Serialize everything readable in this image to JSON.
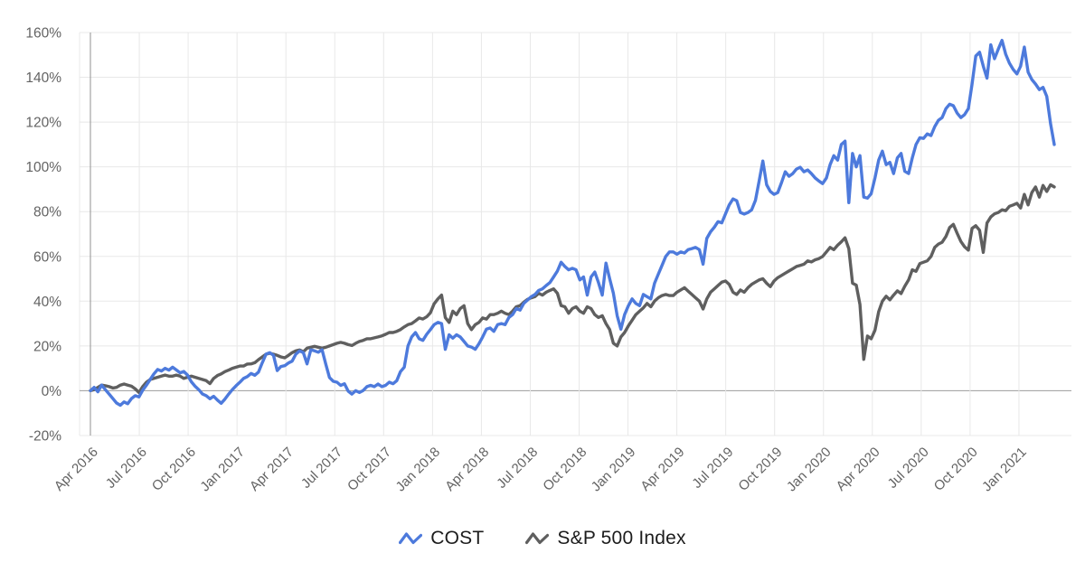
{
  "chart_data": {
    "type": "line",
    "title": "",
    "grid": true,
    "legend_position": "bottom",
    "y_axis": {
      "tick_labels": [
        "160%",
        "140%",
        "120%",
        "100%",
        "80%",
        "60%",
        "40%",
        "20%",
        "0%",
        "-20%"
      ],
      "tick_values": [
        160,
        140,
        120,
        100,
        80,
        60,
        40,
        20,
        0,
        -20
      ],
      "ylim": [
        -20,
        160
      ],
      "unit": "%"
    },
    "x_axis": {
      "tick_labels": [
        "Apr 2016",
        "Jul 2016",
        "Oct 2016",
        "Jan 2017",
        "Apr 2017",
        "Jul 2017",
        "Oct 2017",
        "Jan 2018",
        "Apr 2018",
        "Jul 2018",
        "Oct 2018",
        "Jan 2019",
        "Apr 2019",
        "Jul 2019",
        "Oct 2019",
        "Jan 2020",
        "Apr 2020",
        "Jul 2020",
        "Oct 2020",
        "Jan 2021"
      ],
      "interval": "weekly"
    },
    "series": [
      {
        "name": "COST",
        "color": "#4d7adc",
        "icon": "line-zigzag-icon",
        "values": [
          0,
          1.5,
          -0.5,
          2.5,
          0.5,
          -1.5,
          -3.5,
          -5.5,
          -6.5,
          -5,
          -5.8,
          -3.5,
          -2.2,
          -2.8,
          0.2,
          2.5,
          5,
          7.5,
          9.5,
          8.8,
          10,
          9.2,
          10.5,
          9.3,
          8,
          8.6,
          7,
          4,
          2,
          0.5,
          -1.5,
          -2.2,
          -3.6,
          -2.5,
          -4.2,
          -5.6,
          -3.8,
          -1.5,
          0.5,
          2.2,
          3.8,
          5.5,
          6.3,
          7.7,
          6.9,
          8.3,
          12.5,
          16.3,
          17,
          15.8,
          9,
          10.8,
          11.2,
          12.4,
          13.2,
          16.3,
          17.8,
          17,
          12,
          18.3,
          17.8,
          17.2,
          18.3,
          11.9,
          5.9,
          4.2,
          3.8,
          2.4,
          3.1,
          -0.2,
          -1.5,
          0,
          -0.8,
          0.1,
          1.8,
          2.4,
          1.8,
          3,
          1.8,
          2.4,
          3.8,
          3.1,
          4.5,
          8.5,
          10.5,
          20,
          24,
          26,
          23.2,
          22.5,
          25.2,
          27.3,
          29.5,
          30.5,
          30,
          18.5,
          25,
          23.5,
          25,
          24,
          22,
          20,
          19.5,
          18.5,
          21,
          24,
          27.5,
          28,
          26.5,
          29.5,
          30,
          29.5,
          32.7,
          34,
          36.7,
          36,
          39,
          40.5,
          42,
          43,
          44.8,
          45.5,
          47,
          48.3,
          50.8,
          53.5,
          57.4,
          55.5,
          54,
          54.7,
          54,
          49.5,
          50.8,
          42.7,
          50.8,
          53,
          48.3,
          42.7,
          57,
          50,
          43.5,
          33.5,
          27.5,
          34,
          38,
          41,
          39,
          38,
          43,
          42,
          41,
          48,
          52,
          56,
          60,
          62,
          62,
          61,
          62,
          61.5,
          63,
          63.5,
          64,
          63,
          56.5,
          68,
          71,
          73,
          75.5,
          75,
          79,
          83,
          85.7,
          84.9,
          79.6,
          78.9,
          79.6,
          80.8,
          85,
          93.7,
          102.6,
          92,
          89,
          87.7,
          88.5,
          93,
          97.8,
          95.8,
          97,
          99,
          99.8,
          97.8,
          98.6,
          97,
          95,
          93.7,
          92.5,
          95,
          101,
          105,
          103,
          110,
          111.5,
          84,
          106,
          100,
          105,
          86.5,
          86,
          88,
          95,
          103,
          107,
          101,
          102,
          97,
          104,
          106,
          98,
          97,
          104,
          110,
          113,
          112.7,
          114.7,
          114,
          118,
          120.8,
          122,
          126,
          128,
          127.3,
          124,
          122,
          123.3,
          126,
          137,
          149.5,
          151.2,
          145,
          139.6,
          154.5,
          148.3,
          152.5,
          156.5,
          150.3,
          146.3,
          143.5,
          141.5,
          145,
          153.5,
          142.3,
          139,
          137,
          134.5,
          135.5,
          131.5,
          119.3,
          110
        ]
      },
      {
        "name": "S&P 500 Index",
        "color": "#5f5f5f",
        "icon": "line-zigzag-icon",
        "values": [
          0,
          0.5,
          1.5,
          2.5,
          2.2,
          1.8,
          1.2,
          1.5,
          2.5,
          3,
          2.5,
          2,
          0.8,
          -0.8,
          1.8,
          3.8,
          5,
          5.5,
          6,
          6.5,
          7,
          6.5,
          6.5,
          7,
          6.5,
          5.5,
          6,
          6.5,
          6,
          5.5,
          5,
          4.5,
          3.2,
          5.5,
          6.8,
          7.5,
          8.5,
          9.2,
          10,
          10.5,
          11,
          11,
          11.9,
          12,
          12.5,
          13.9,
          15.1,
          16.3,
          16.7,
          16.3,
          15.8,
          15.1,
          14.7,
          15.8,
          17,
          17.8,
          18.2,
          17.4,
          19,
          19.4,
          19.8,
          19.4,
          19,
          19.4,
          20,
          20.6,
          21.2,
          21.6,
          21.2,
          20.6,
          20.2,
          21.2,
          22,
          22.5,
          23.2,
          23.2,
          23.6,
          24,
          24.5,
          25.2,
          26,
          26,
          26.5,
          27.3,
          28.5,
          29.5,
          30,
          31.2,
          32.5,
          32,
          33,
          34.8,
          38.8,
          41,
          42.7,
          32.7,
          30.5,
          35.5,
          34,
          36.7,
          38,
          30,
          27.3,
          29.5,
          30.5,
          32.5,
          32,
          34,
          34,
          34.6,
          35.5,
          34.6,
          34,
          35.5,
          37.5,
          38,
          39.5,
          40.8,
          41.5,
          42,
          43.5,
          42.7,
          44,
          44.8,
          45.5,
          43.5,
          38,
          37.5,
          34.6,
          36.7,
          37.5,
          35.5,
          34.6,
          37.5,
          36.7,
          34,
          32.7,
          33.5,
          30,
          27.3,
          21.2,
          20,
          24,
          26,
          29,
          31.5,
          34,
          35.5,
          37,
          39,
          37.5,
          40,
          41.5,
          42.5,
          43,
          42.5,
          42.5,
          44,
          45,
          46,
          44.5,
          43,
          41.5,
          40,
          36.5,
          41,
          44,
          45.5,
          47,
          48.5,
          49,
          47.5,
          44,
          43,
          45,
          44,
          46,
          47.5,
          48.5,
          49.5,
          50,
          48,
          46.5,
          49,
          50.5,
          51.5,
          52.5,
          53.5,
          54.5,
          55.5,
          56,
          56.5,
          58,
          57.5,
          58.5,
          59,
          60,
          62,
          64,
          63,
          65,
          66.5,
          68.3,
          63.4,
          48,
          47.2,
          38.5,
          14,
          24.4,
          23.2,
          27,
          35.3,
          40,
          42.2,
          40.6,
          42.7,
          44.6,
          43.4,
          46.7,
          49.5,
          54,
          53.3,
          56.8,
          57.4,
          58,
          60,
          64,
          65.5,
          66.3,
          68.9,
          72.9,
          74.3,
          70.3,
          66.7,
          64.3,
          62.8,
          72.5,
          73.7,
          71.7,
          61.8,
          74.9,
          77.6,
          79,
          79.6,
          80.8,
          80.4,
          82.4,
          83,
          83.7,
          81.6,
          87.7,
          83,
          88.5,
          91,
          86.5,
          91.7,
          89,
          92,
          91
        ]
      }
    ]
  },
  "legend": {
    "items": [
      {
        "label": "COST"
      },
      {
        "label": "S&P 500 Index"
      }
    ]
  },
  "colors": {
    "background": "#ffffff",
    "gridline": "#e8e8e8",
    "zero_line": "#9c9c9c",
    "start_line": "#909090",
    "plot_edge_line": "#e8e8e8",
    "axis_text": "#636363",
    "legend_text": "#1c1c1c",
    "cost_line": "#4d7adc",
    "sp500_line": "#5f5f5f"
  }
}
